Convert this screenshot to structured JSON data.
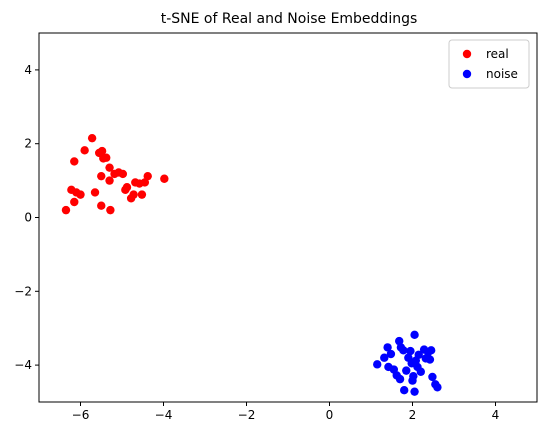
{
  "chart_data": {
    "type": "scatter",
    "title": "t-SNE of Real and Noise Embeddings",
    "xlabel": "",
    "ylabel": "",
    "xlim": [
      -7,
      5
    ],
    "ylim": [
      -5,
      5
    ],
    "xticks": [
      -6,
      -4,
      -2,
      0,
      2,
      4
    ],
    "yticks": [
      -4,
      -2,
      0,
      2,
      4
    ],
    "xtick_labels": [
      "−6",
      "−4",
      "−2",
      "0",
      "2",
      "4"
    ],
    "ytick_labels": [
      "−4",
      "−2",
      "0",
      "2",
      "4"
    ],
    "grid": false,
    "legend_position": "top-right",
    "series": [
      {
        "name": "real",
        "color": "#ff0000",
        "points": [
          [
            -6.35,
            0.2
          ],
          [
            -6.22,
            0.75
          ],
          [
            -6.15,
            0.42
          ],
          [
            -6.1,
            0.68
          ],
          [
            -6.0,
            0.62
          ],
          [
            -6.15,
            1.52
          ],
          [
            -5.9,
            1.82
          ],
          [
            -5.72,
            2.15
          ],
          [
            -5.65,
            0.68
          ],
          [
            -5.55,
            1.75
          ],
          [
            -5.48,
            1.8
          ],
          [
            -5.45,
            1.6
          ],
          [
            -5.38,
            1.62
          ],
          [
            -5.5,
            1.12
          ],
          [
            -5.3,
            1.0
          ],
          [
            -5.3,
            1.35
          ],
          [
            -5.18,
            1.18
          ],
          [
            -5.08,
            1.22
          ],
          [
            -4.98,
            1.18
          ],
          [
            -4.92,
            0.75
          ],
          [
            -4.88,
            0.82
          ],
          [
            -4.78,
            0.52
          ],
          [
            -4.72,
            0.62
          ],
          [
            -4.68,
            0.95
          ],
          [
            -4.58,
            0.92
          ],
          [
            -4.52,
            0.62
          ],
          [
            -4.45,
            0.95
          ],
          [
            -4.38,
            1.12
          ],
          [
            -3.98,
            1.05
          ],
          [
            -5.5,
            0.32
          ],
          [
            -5.28,
            0.2
          ]
        ]
      },
      {
        "name": "noise",
        "color": "#0000ff",
        "points": [
          [
            1.15,
            -3.98
          ],
          [
            1.32,
            -3.8
          ],
          [
            1.4,
            -3.52
          ],
          [
            1.42,
            -4.05
          ],
          [
            1.48,
            -3.7
          ],
          [
            1.55,
            -4.12
          ],
          [
            1.62,
            -4.28
          ],
          [
            1.68,
            -3.35
          ],
          [
            1.7,
            -4.38
          ],
          [
            1.72,
            -3.52
          ],
          [
            1.78,
            -3.6
          ],
          [
            1.8,
            -4.68
          ],
          [
            1.85,
            -4.15
          ],
          [
            1.9,
            -3.8
          ],
          [
            1.95,
            -3.62
          ],
          [
            1.98,
            -3.95
          ],
          [
            2.0,
            -4.42
          ],
          [
            2.02,
            -4.3
          ],
          [
            2.05,
            -3.18
          ],
          [
            2.05,
            -4.72
          ],
          [
            2.08,
            -3.88
          ],
          [
            2.12,
            -4.05
          ],
          [
            2.15,
            -3.72
          ],
          [
            2.2,
            -4.18
          ],
          [
            2.28,
            -3.58
          ],
          [
            2.32,
            -3.82
          ],
          [
            2.38,
            -3.65
          ],
          [
            2.42,
            -3.85
          ],
          [
            2.45,
            -3.6
          ],
          [
            2.48,
            -4.32
          ],
          [
            2.55,
            -4.52
          ],
          [
            2.6,
            -4.6
          ]
        ]
      }
    ]
  }
}
